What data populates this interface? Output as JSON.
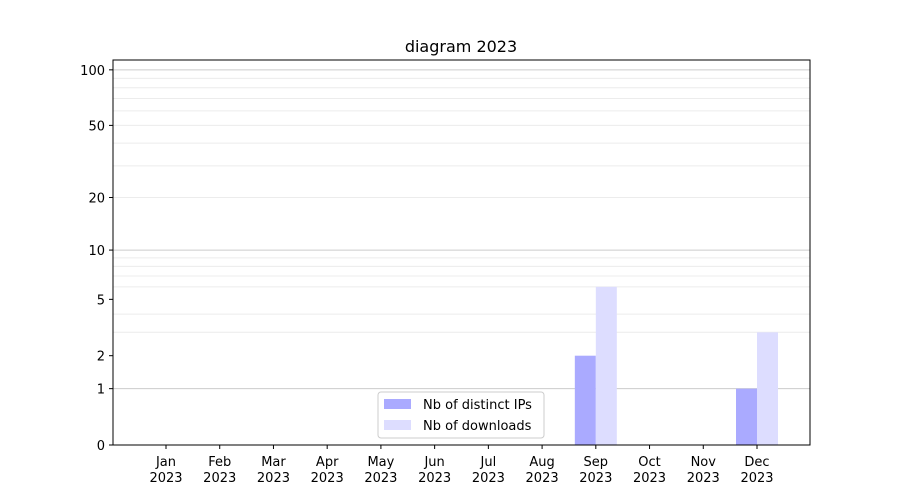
{
  "chart_data": {
    "type": "bar",
    "title": "diagram 2023",
    "xlabel": "",
    "ylabel": "",
    "categories": [
      "Jan\n2023",
      "Feb\n2023",
      "Mar\n2023",
      "Apr\n2023",
      "May\n2023",
      "Jun\n2023",
      "Jul\n2023",
      "Aug\n2023",
      "Sep\n2023",
      "Oct\n2023",
      "Nov\n2023",
      "Dec\n2023"
    ],
    "series": [
      {
        "name": "Nb of distinct IPs",
        "color": "#aaaaff",
        "values": [
          0,
          0,
          0,
          0,
          0,
          0,
          0,
          0,
          2,
          0,
          0,
          1
        ]
      },
      {
        "name": "Nb of downloads",
        "color": "#ddddff",
        "values": [
          0,
          0,
          0,
          0,
          0,
          0,
          0,
          0,
          6,
          0,
          0,
          3
        ]
      }
    ],
    "y_scale": "log(1+y)",
    "ylim": [
      0,
      113
    ],
    "yticks": [
      0,
      1,
      2,
      5,
      10,
      20,
      50,
      100
    ],
    "major_grid": [
      1,
      10,
      100
    ],
    "minor_grid": [
      3,
      4,
      6,
      7,
      8,
      9,
      20,
      30,
      40,
      50,
      60,
      70,
      80,
      90
    ],
    "grid": true,
    "legend_position": "lower-center"
  }
}
